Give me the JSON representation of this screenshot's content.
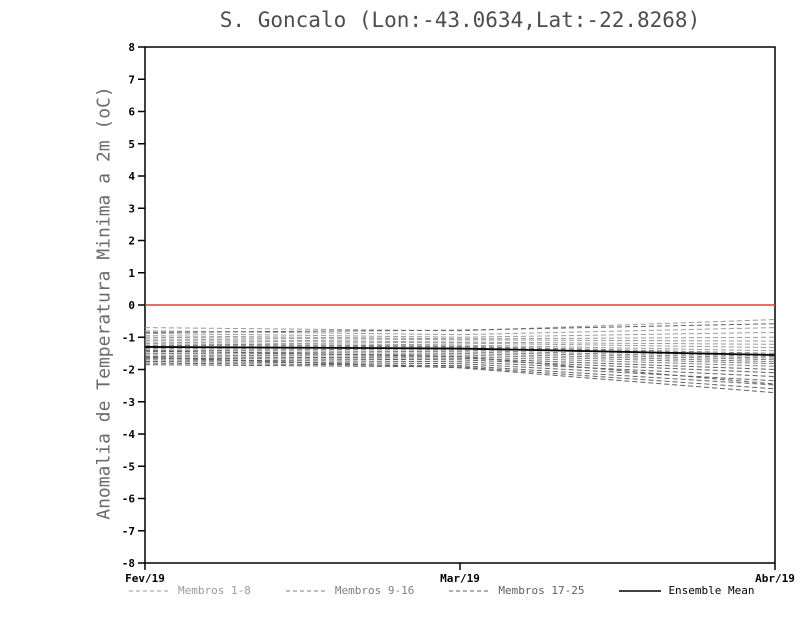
{
  "chart_data": {
    "type": "line",
    "title": "S. Goncalo (Lon:-43.0634,Lat:-22.8268)",
    "ylabel": "Anomalia de Temperatura Minima a 2m (oC)",
    "xlabel": "",
    "ylim": [
      -8,
      8
    ],
    "ytick_step": 1,
    "grid": false,
    "zero_line_color": "#e23b3b",
    "axis_color": "#000000",
    "x_ticks": [
      "Fev/19",
      "Mar/19",
      "Abr/19"
    ],
    "x_tick_positions": [
      0,
      0.5,
      1
    ],
    "x": [
      0,
      0.5,
      1
    ],
    "legend_position": "bottom",
    "legend": [
      {
        "label": "Membros 1-8",
        "style": "dashed",
        "color": "#9a9a9a"
      },
      {
        "label": "Membros 9-16",
        "style": "dashed",
        "color": "#7f7f7f"
      },
      {
        "label": "Membros 17-25",
        "style": "dashed",
        "color": "#5f5f5f"
      },
      {
        "label": "Ensemble Mean",
        "style": "solid",
        "color": "#000000"
      }
    ],
    "series": [
      {
        "name": "Membro 1",
        "legend_ref": 0,
        "values": [
          -0.7,
          -0.8,
          -0.45
        ]
      },
      {
        "name": "Membro 2",
        "legend_ref": 0,
        "values": [
          -0.8,
          -0.92,
          -0.7
        ]
      },
      {
        "name": "Membro 3",
        "legend_ref": 0,
        "values": [
          -0.88,
          -1.0,
          -0.85
        ]
      },
      {
        "name": "Membro 4",
        "legend_ref": 0,
        "values": [
          -0.95,
          -1.05,
          -1.0
        ]
      },
      {
        "name": "Membro 5",
        "legend_ref": 0,
        "values": [
          -1.0,
          -1.08,
          -1.12
        ]
      },
      {
        "name": "Membro 6",
        "legend_ref": 0,
        "values": [
          -1.05,
          -1.15,
          -1.22
        ]
      },
      {
        "name": "Membro 7",
        "legend_ref": 0,
        "values": [
          -1.1,
          -1.18,
          -1.32
        ]
      },
      {
        "name": "Membro 8",
        "legend_ref": 0,
        "values": [
          -1.15,
          -1.24,
          -1.42
        ]
      },
      {
        "name": "Membro 9",
        "legend_ref": 1,
        "values": [
          -1.2,
          -1.28,
          -1.5
        ]
      },
      {
        "name": "Membro 10",
        "legend_ref": 1,
        "values": [
          -1.25,
          -1.3,
          -1.55
        ]
      },
      {
        "name": "Membro 11",
        "legend_ref": 1,
        "values": [
          -1.3,
          -1.34,
          -1.6
        ]
      },
      {
        "name": "Membro 12",
        "legend_ref": 1,
        "values": [
          -1.35,
          -1.4,
          -1.65
        ]
      },
      {
        "name": "Membro 13",
        "legend_ref": 1,
        "values": [
          -1.4,
          -1.45,
          -1.7
        ]
      },
      {
        "name": "Membro 14",
        "legend_ref": 1,
        "values": [
          -1.45,
          -1.5,
          -1.76
        ]
      },
      {
        "name": "Membro 15",
        "legend_ref": 1,
        "values": [
          -1.5,
          -1.55,
          -1.82
        ]
      },
      {
        "name": "Membro 16",
        "legend_ref": 1,
        "values": [
          -1.55,
          -1.6,
          -1.9
        ]
      },
      {
        "name": "Membro 17",
        "legend_ref": 2,
        "values": [
          -1.6,
          -1.65,
          -2.0
        ]
      },
      {
        "name": "Membro 18",
        "legend_ref": 2,
        "values": [
          -1.65,
          -1.7,
          -2.1
        ]
      },
      {
        "name": "Membro 19",
        "legend_ref": 2,
        "values": [
          -1.7,
          -1.76,
          -2.22
        ]
      },
      {
        "name": "Membro 20",
        "legend_ref": 2,
        "values": [
          -1.75,
          -1.82,
          -2.35
        ]
      },
      {
        "name": "Membro 21",
        "legend_ref": 2,
        "values": [
          -1.8,
          -1.88,
          -2.48
        ]
      },
      {
        "name": "Membro 22",
        "legend_ref": 2,
        "values": [
          -1.85,
          -1.92,
          -2.6
        ]
      },
      {
        "name": "Membro 23",
        "legend_ref": 2,
        "values": [
          -1.62,
          -1.95,
          -2.72
        ]
      },
      {
        "name": "Membro 24",
        "legend_ref": 2,
        "values": [
          -1.42,
          -1.6,
          -2.45
        ]
      },
      {
        "name": "Membro 25",
        "legend_ref": 2,
        "values": [
          -0.85,
          -0.78,
          -0.58
        ]
      },
      {
        "name": "Ensemble Mean",
        "legend_ref": 3,
        "values": [
          -1.3,
          -1.35,
          -1.55
        ]
      }
    ]
  }
}
